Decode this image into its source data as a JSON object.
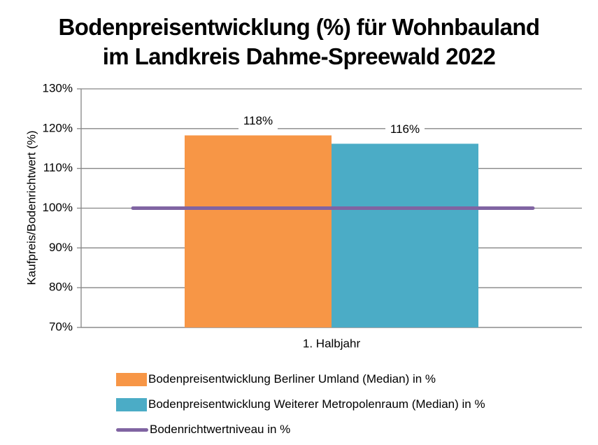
{
  "chart_data": {
    "type": "bar",
    "title_lines": [
      "Bodenpreisentwicklung (%) für Wohnbauland",
      "im Landkreis Dahme-Spreewald 2022"
    ],
    "xlabel": "",
    "ylabel": "Kaufpreis/Bodenrichtwert (%)",
    "categories": [
      "1. Halbjahr"
    ],
    "ylim": [
      70,
      130
    ],
    "yticks": [
      70,
      80,
      90,
      100,
      110,
      120,
      130
    ],
    "ytick_labels": [
      "70%",
      "80%",
      "90%",
      "100%",
      "110%",
      "120%",
      "130%"
    ],
    "grid": true,
    "legend_position": "bottom",
    "series": [
      {
        "name": "Bodenpreisentwicklung Berliner Umland (Median) in %",
        "type": "bar",
        "values": [
          118.3
        ],
        "labels": [
          "118%"
        ],
        "color": "#F79646"
      },
      {
        "name": "Bodenpreisentwicklung Weiterer Metropolenraum (Median) in %",
        "type": "bar",
        "values": [
          116.2
        ],
        "labels": [
          "116%"
        ],
        "color": "#4BACC6"
      },
      {
        "name": "Bodenrichtwertniveau in %",
        "type": "line",
        "values": [
          100
        ],
        "color": "#8064A2"
      }
    ]
  }
}
